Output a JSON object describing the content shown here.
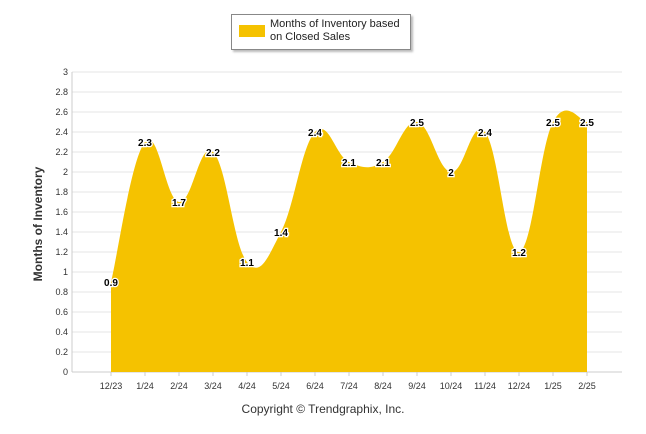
{
  "chart_data": {
    "type": "area",
    "categories": [
      "12/23",
      "1/24",
      "2/24",
      "3/24",
      "4/24",
      "5/24",
      "6/24",
      "7/24",
      "8/24",
      "9/24",
      "10/24",
      "11/24",
      "12/24",
      "1/25",
      "2/25"
    ],
    "series": [
      {
        "name": "Months of Inventory based on Closed Sales",
        "values": [
          0.9,
          2.3,
          1.7,
          2.2,
          1.1,
          1.4,
          2.4,
          2.1,
          2.1,
          2.5,
          2.0,
          2.4,
          1.2,
          2.5,
          2.5
        ]
      }
    ],
    "data_labels": [
      "0.9",
      "2.3",
      "1.7",
      "2.2",
      "1.1",
      "1.4",
      "2.4",
      "2.1",
      "2.1",
      "2.5",
      "2",
      "2.4",
      "1.2",
      "2.5",
      "2.5"
    ],
    "ylabel": "Months of Inventory",
    "xlabel": "",
    "ylim": [
      0,
      3
    ],
    "yticks": [
      "0",
      "0.2",
      "0.4",
      "0.6",
      "0.8",
      "1",
      "1.2",
      "1.4",
      "1.6",
      "1.8",
      "2",
      "2.2",
      "2.4",
      "2.6",
      "2.8",
      "3"
    ],
    "grid": true,
    "legend_position": "top-center",
    "colors": {
      "fill": "#F5C200",
      "grid": "#e6e6e6",
      "axis": "#cccccc",
      "text": "#333333"
    }
  },
  "legend": {
    "label": "Months of Inventory based on Closed Sales"
  },
  "footer": {
    "copyright": "Copyright © Trendgraphix, Inc."
  }
}
